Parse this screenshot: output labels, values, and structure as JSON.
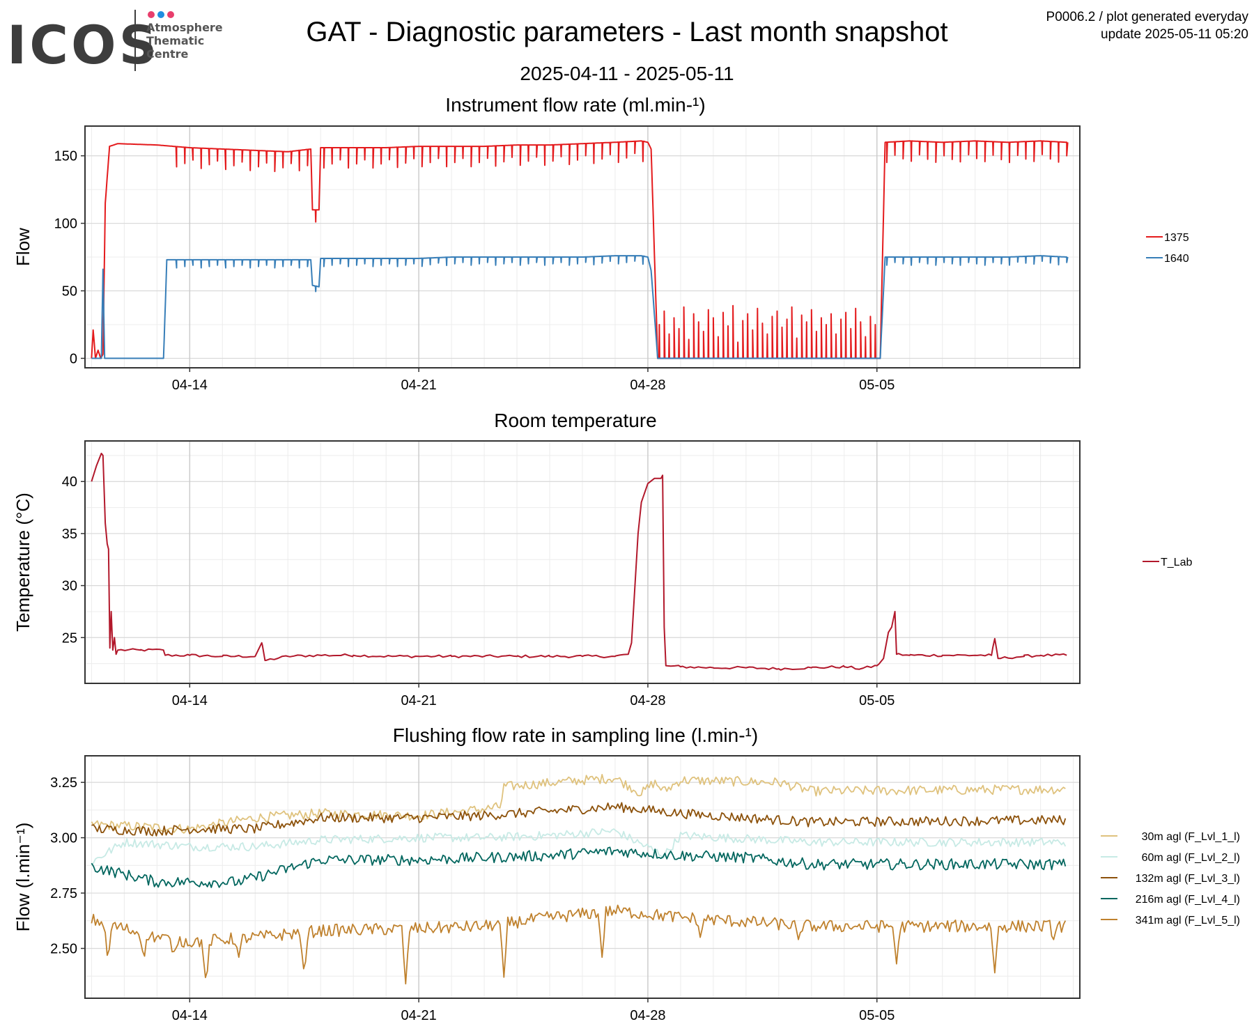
{
  "header": {
    "title": "GAT - Diagnostic parameters - Last month snapshot",
    "date_range": "2025-04-11 - 2025-05-11",
    "meta_line1": "P0006.2 / plot generated everyday",
    "meta_line2": "update  2025-05-11 05:20"
  },
  "logo": {
    "text": "ICOS",
    "sub1": "Atmosphere",
    "sub2": "Thematic",
    "sub3": "Centre",
    "dot_colors": [
      "#e83e6c",
      "#1f8ee0",
      "#e83e6c"
    ]
  },
  "chart_data": [
    {
      "type": "line",
      "title": "Instrument flow rate (ml.min-¹)",
      "ylabel": "Flow",
      "xlabel": "",
      "x_ticks": [
        "04-14",
        "04-21",
        "04-28",
        "05-05"
      ],
      "x_tick_days": [
        3,
        10,
        17,
        24
      ],
      "xlim_days": [
        -0.2,
        30.2
      ],
      "ylim": [
        -7,
        172
      ],
      "y_ticks": [
        0,
        50,
        100,
        150
      ],
      "grid": true,
      "legend_position": "right",
      "series": [
        {
          "name": "1375",
          "color": "#e41a1c",
          "points": [
            [
              0.0,
              0
            ],
            [
              0.05,
              21
            ],
            [
              0.12,
              0
            ],
            [
              0.2,
              6
            ],
            [
              0.28,
              0
            ],
            [
              0.35,
              3
            ],
            [
              0.42,
              115
            ],
            [
              0.55,
              157
            ],
            [
              0.8,
              159
            ],
            [
              2.0,
              158
            ],
            [
              3.0,
              156
            ],
            [
              4.0,
              155
            ],
            [
              5.0,
              154
            ],
            [
              6.0,
              153
            ],
            [
              6.7,
              155
            ],
            [
              6.75,
              110
            ],
            [
              6.95,
              110
            ],
            [
              7.0,
              156
            ],
            [
              8.0,
              156
            ],
            [
              9.0,
              156
            ],
            [
              10.0,
              157
            ],
            [
              11.0,
              157
            ],
            [
              12.0,
              157
            ],
            [
              13.0,
              158
            ],
            [
              14.0,
              158
            ],
            [
              15.0,
              159
            ],
            [
              16.0,
              160
            ],
            [
              16.8,
              161
            ],
            [
              17.0,
              160
            ],
            [
              17.1,
              155
            ],
            [
              17.3,
              0
            ],
            [
              24.1,
              0
            ],
            [
              24.25,
              160
            ],
            [
              25.0,
              161
            ],
            [
              26.0,
              160
            ],
            [
              27.0,
              161
            ],
            [
              28.0,
              160
            ],
            [
              29.0,
              161
            ],
            [
              29.8,
              160
            ]
          ],
          "dips": {
            "range_days": [
              2.6,
              17.0
            ],
            "step_days": 0.25,
            "depth_values": [
              15,
              12,
              9
            ]
          },
          "spikes": {
            "range_days": [
              17.35,
              24.05
            ],
            "step_days": 0.15,
            "max_values": [
              25,
              35,
              18,
              30,
              22,
              38,
              14,
              33,
              27,
              20,
              36,
              30,
              16,
              34,
              24,
              39,
              12,
              28,
              33,
              21,
              37,
              26,
              18,
              31,
              35,
              23,
              29,
              38,
              15,
              32,
              27,
              36,
              20,
              30,
              25,
              33,
              18,
              29,
              34,
              22,
              37,
              27,
              16,
              31
            ]
          },
          "dips_after": {
            "range_days": [
              24.3,
              29.8
            ],
            "step_days": 0.25,
            "depth_values": [
              15,
              10,
              13
            ]
          }
        },
        {
          "name": "1640",
          "color": "#377eb8",
          "points": [
            [
              0.0,
              0
            ],
            [
              0.2,
              0
            ],
            [
              0.3,
              0
            ],
            [
              0.35,
              66
            ],
            [
              0.4,
              0
            ],
            [
              2.2,
              0
            ],
            [
              2.3,
              73
            ],
            [
              3.0,
              73
            ],
            [
              4.0,
              73
            ],
            [
              5.0,
              73
            ],
            [
              6.0,
              73
            ],
            [
              6.7,
              73
            ],
            [
              6.75,
              54
            ],
            [
              6.95,
              53
            ],
            [
              7.0,
              74
            ],
            [
              8.0,
              74
            ],
            [
              9.0,
              74
            ],
            [
              10.0,
              74
            ],
            [
              11.0,
              75
            ],
            [
              12.0,
              75
            ],
            [
              13.0,
              75
            ],
            [
              14.0,
              75
            ],
            [
              15.0,
              75
            ],
            [
              16.0,
              76
            ],
            [
              16.8,
              76
            ],
            [
              17.0,
              75
            ],
            [
              17.1,
              65
            ],
            [
              17.3,
              0
            ],
            [
              24.1,
              0
            ],
            [
              24.25,
              75
            ],
            [
              25.0,
              75
            ],
            [
              26.0,
              75
            ],
            [
              27.0,
              75
            ],
            [
              28.0,
              75
            ],
            [
              29.0,
              76
            ],
            [
              29.8,
              75
            ]
          ],
          "dips": {
            "range_days": [
              2.6,
              17.0
            ],
            "step_days": 0.25,
            "depth_values": [
              6,
              5,
              4
            ]
          },
          "dips_after": {
            "range_days": [
              24.3,
              29.8
            ],
            "step_days": 0.25,
            "depth_values": [
              6,
              4,
              5
            ]
          }
        }
      ]
    },
    {
      "type": "line",
      "title": "Room temperature",
      "ylabel": "Temperature (°C)",
      "xlabel": "",
      "x_ticks": [
        "04-14",
        "04-21",
        "04-28",
        "05-05"
      ],
      "x_tick_days": [
        3,
        10,
        17,
        24
      ],
      "xlim_days": [
        -0.2,
        30.2
      ],
      "ylim": [
        20.6,
        43.9
      ],
      "y_ticks": [
        25,
        30,
        35,
        40
      ],
      "grid": true,
      "legend_position": "right",
      "series": [
        {
          "name": "T_Lab",
          "color": "#b2182b",
          "points": [
            [
              0.0,
              40.0
            ],
            [
              0.15,
              41.5
            ],
            [
              0.3,
              42.7
            ],
            [
              0.35,
              42.5
            ],
            [
              0.42,
              36
            ],
            [
              0.48,
              34
            ],
            [
              0.52,
              33.5
            ],
            [
              0.56,
              24
            ],
            [
              0.6,
              27.5
            ],
            [
              0.65,
              23.8
            ],
            [
              0.7,
              25
            ],
            [
              0.75,
              23.4
            ],
            [
              0.8,
              23.8
            ],
            [
              1.5,
              23.8
            ],
            [
              2.2,
              23.8
            ],
            [
              2.25,
              23.3
            ],
            [
              3.0,
              23.3
            ],
            [
              4.0,
              23.2
            ],
            [
              5.0,
              23.2
            ],
            [
              5.2,
              24.5
            ],
            [
              5.3,
              22.8
            ],
            [
              6.0,
              23.2
            ],
            [
              7.0,
              23.3
            ],
            [
              8.0,
              23.3
            ],
            [
              9.0,
              23.2
            ],
            [
              10.0,
              23.2
            ],
            [
              11.0,
              23.2
            ],
            [
              12.0,
              23.2
            ],
            [
              13.0,
              23.2
            ],
            [
              14.0,
              23.2
            ],
            [
              15.0,
              23.2
            ],
            [
              16.0,
              23.2
            ],
            [
              16.4,
              23.4
            ],
            [
              16.5,
              24.5
            ],
            [
              16.7,
              35
            ],
            [
              16.8,
              38
            ],
            [
              17.0,
              39.8
            ],
            [
              17.2,
              40.3
            ],
            [
              17.4,
              40.3
            ],
            [
              17.45,
              40.6
            ],
            [
              17.5,
              26
            ],
            [
              17.55,
              22.3
            ],
            [
              18.0,
              22.2
            ],
            [
              19.0,
              22.1
            ],
            [
              20.0,
              22.1
            ],
            [
              21.0,
              22.0
            ],
            [
              22.0,
              22.1
            ],
            [
              23.0,
              22.2
            ],
            [
              23.5,
              22.0
            ],
            [
              24.0,
              22.3
            ],
            [
              24.2,
              23.0
            ],
            [
              24.35,
              25.5
            ],
            [
              24.45,
              26.0
            ],
            [
              24.55,
              27.5
            ],
            [
              24.6,
              23.4
            ],
            [
              25.0,
              23.3
            ],
            [
              26.0,
              23.3
            ],
            [
              27.0,
              23.3
            ],
            [
              27.5,
              23.3
            ],
            [
              27.6,
              24.9
            ],
            [
              27.7,
              23.0
            ],
            [
              28.5,
              23.2
            ],
            [
              29.0,
              23.3
            ],
            [
              29.8,
              23.3
            ]
          ]
        }
      ]
    },
    {
      "type": "line",
      "title": "Flushing flow rate in sampling line (l.min-¹)",
      "ylabel": "Flow (l.min⁻¹)",
      "xlabel": "",
      "x_ticks": [
        "04-14",
        "04-21",
        "04-28",
        "05-05"
      ],
      "x_tick_days": [
        3,
        10,
        17,
        24
      ],
      "xlim_days": [
        -0.2,
        30.2
      ],
      "ylim": [
        2.275,
        3.37
      ],
      "y_ticks": [
        2.5,
        2.75,
        3.0,
        3.25
      ],
      "y_tick_labels": [
        "2.50",
        "2.75",
        "3.00",
        "3.25"
      ],
      "grid": true,
      "legend_position": "right",
      "series": [
        {
          "name": "30m agl (F_Lvl_1_l)",
          "color": "#dfc27d",
          "points": [
            [
              0,
              3.06
            ],
            [
              3,
              3.04
            ],
            [
              5,
              3.09
            ],
            [
              7,
              3.11
            ],
            [
              10,
              3.1
            ],
            [
              12,
              3.13
            ],
            [
              12.5,
              3.14
            ],
            [
              12.6,
              3.23
            ],
            [
              15,
              3.26
            ],
            [
              16,
              3.27
            ],
            [
              16.8,
              3.2
            ],
            [
              17.2,
              3.25
            ],
            [
              17.5,
              3.21
            ],
            [
              18,
              3.26
            ],
            [
              21,
              3.25
            ],
            [
              22,
              3.21
            ],
            [
              30,
              3.22
            ]
          ],
          "noise": 0.022
        },
        {
          "name": "60m agl (F_Lvl_2_l)",
          "color": "#c7eae5",
          "points": [
            [
              0,
              2.89
            ],
            [
              1,
              2.98
            ],
            [
              3,
              2.96
            ],
            [
              5,
              2.96
            ],
            [
              7,
              2.99
            ],
            [
              10,
              3.0
            ],
            [
              12,
              3.0
            ],
            [
              14,
              3.01
            ],
            [
              16,
              3.03
            ],
            [
              17.5,
              2.92
            ],
            [
              18,
              3.01
            ],
            [
              22,
              2.98
            ],
            [
              30,
              2.98
            ]
          ],
          "noise": 0.02
        },
        {
          "name": "132m agl (F_Lvl_3_l)",
          "color": "#8c510a",
          "points": [
            [
              0,
              3.04
            ],
            [
              2,
              3.03
            ],
            [
              3,
              3.04
            ],
            [
              5,
              3.04
            ],
            [
              7,
              3.09
            ],
            [
              10,
              3.09
            ],
            [
              12,
              3.1
            ],
            [
              14,
              3.12
            ],
            [
              16,
              3.14
            ],
            [
              18,
              3.11
            ],
            [
              20,
              3.09
            ],
            [
              22,
              3.07
            ],
            [
              30,
              3.08
            ]
          ],
          "noise": 0.022
        },
        {
          "name": "216m agl (F_Lvl_4_l)",
          "color": "#01665e",
          "points": [
            [
              0,
              2.87
            ],
            [
              2,
              2.8
            ],
            [
              3,
              2.8
            ],
            [
              4.5,
              2.8
            ],
            [
              6,
              2.86
            ],
            [
              7,
              2.9
            ],
            [
              10,
              2.9
            ],
            [
              12,
              2.91
            ],
            [
              14,
              2.92
            ],
            [
              16,
              2.94
            ],
            [
              18,
              2.92
            ],
            [
              20,
              2.91
            ],
            [
              22,
              2.88
            ],
            [
              24,
              2.88
            ],
            [
              30,
              2.88
            ]
          ],
          "noise": 0.025
        },
        {
          "name": "341m agl (F_Lvl_5_l)",
          "color": "#bf812d",
          "points": [
            [
              0,
              2.63
            ],
            [
              2,
              2.55
            ],
            [
              3,
              2.53
            ],
            [
              5,
              2.55
            ],
            [
              7,
              2.58
            ],
            [
              10,
              2.59
            ],
            [
              12,
              2.6
            ],
            [
              14,
              2.64
            ],
            [
              16,
              2.67
            ],
            [
              18,
              2.64
            ],
            [
              20,
              2.62
            ],
            [
              22,
              2.6
            ],
            [
              24,
              2.6
            ],
            [
              30,
              2.6
            ]
          ],
          "noise": 0.028,
          "dip_days": [
            0.5,
            1.6,
            2.5,
            3.5,
            4.5,
            6.5,
            9.6,
            12.6,
            15.6,
            18.6,
            21.6,
            24.6,
            27.6,
            29.4
          ],
          "dip_values": [
            2.44,
            2.45,
            2.47,
            2.33,
            2.46,
            2.37,
            2.34,
            2.37,
            2.46,
            2.55,
            2.54,
            2.43,
            2.39,
            2.54
          ]
        }
      ]
    }
  ]
}
